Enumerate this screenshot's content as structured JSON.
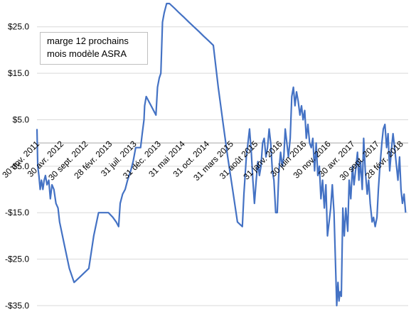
{
  "chart_data": {
    "type": "line",
    "legend": {
      "lines": [
        "marge 12 prochains",
        "mois modèle ASRA"
      ],
      "placement": "top-left"
    },
    "series_color": "#4472c4",
    "ylim": [
      -35,
      30
    ],
    "y_ticks": [
      25,
      15,
      5,
      -5,
      -15,
      -25,
      -35
    ],
    "y_tick_labels": [
      "$25.0",
      "$15.0",
      "$5.0",
      "-$5.0",
      "-$15.0",
      "-$25.0",
      "-$35.0"
    ],
    "grid": "horizontal",
    "x_range": [
      "2011-11-30",
      "2018-04-15"
    ],
    "x_ticks": [
      {
        "date": "2011-11-30",
        "label": "30 nov. 2011"
      },
      {
        "date": "2012-04-30",
        "label": "30 avr. 2012"
      },
      {
        "date": "2012-09-30",
        "label": "30 sept. 2012"
      },
      {
        "date": "2013-02-28",
        "label": "28 févr. 2013"
      },
      {
        "date": "2013-07-31",
        "label": "31 juil. 2013"
      },
      {
        "date": "2013-12-31",
        "label": "31 déc. 2013"
      },
      {
        "date": "2014-05-31",
        "label": "31 mai 2014"
      },
      {
        "date": "2014-10-31",
        "label": "31 oct. 2014"
      },
      {
        "date": "2015-03-31",
        "label": "31 mars 2015"
      },
      {
        "date": "2015-08-31",
        "label": "31 août 2015"
      },
      {
        "date": "2016-01-31",
        "label": "31 janv. 2016"
      },
      {
        "date": "2016-06-30",
        "label": "30 juin 2016"
      },
      {
        "date": "2016-11-30",
        "label": "30 nov. 2016"
      },
      {
        "date": "2017-04-30",
        "label": "30 avr. 2017"
      },
      {
        "date": "2017-09-30",
        "label": "30 sept. 2017"
      },
      {
        "date": "2018-02-28",
        "label": "28 févr. 2018"
      }
    ],
    "points": [
      [
        "2011-11-30",
        3
      ],
      [
        "2011-12-05",
        -5
      ],
      [
        "2011-12-12",
        -7
      ],
      [
        "2011-12-20",
        -10
      ],
      [
        "2011-12-28",
        -8
      ],
      [
        "2012-01-06",
        -10
      ],
      [
        "2012-01-14",
        -8
      ],
      [
        "2012-01-22",
        -7
      ],
      [
        "2012-02-01",
        -9
      ],
      [
        "2012-02-12",
        -8
      ],
      [
        "2012-02-22",
        -12
      ],
      [
        "2012-03-03",
        -9
      ],
      [
        "2012-03-15",
        -10
      ],
      [
        "2012-03-28",
        -13
      ],
      [
        "2012-04-10",
        -14
      ],
      [
        "2012-04-20",
        -17
      ],
      [
        "2012-05-20",
        -22
      ],
      [
        "2012-06-20",
        -27
      ],
      [
        "2012-07-20",
        -30
      ],
      [
        "2012-08-20",
        -29
      ],
      [
        "2012-09-20",
        -28
      ],
      [
        "2012-10-20",
        -27
      ],
      [
        "2012-11-20",
        -20
      ],
      [
        "2012-12-20",
        -15
      ],
      [
        "2013-01-20",
        -15
      ],
      [
        "2013-02-20",
        -15
      ],
      [
        "2013-03-20",
        -16
      ],
      [
        "2013-04-10",
        -17
      ],
      [
        "2013-04-25",
        -18
      ],
      [
        "2013-05-05",
        -13
      ],
      [
        "2013-05-20",
        -11
      ],
      [
        "2013-06-05",
        -10
      ],
      [
        "2013-06-20",
        -8
      ],
      [
        "2013-07-10",
        -6
      ],
      [
        "2013-07-25",
        -4
      ],
      [
        "2013-08-10",
        -1
      ],
      [
        "2013-08-25",
        -1
      ],
      [
        "2013-09-10",
        -1
      ],
      [
        "2013-09-20",
        2
      ],
      [
        "2013-10-01",
        5
      ],
      [
        "2013-10-05",
        8
      ],
      [
        "2013-10-15",
        10
      ],
      [
        "2013-10-30",
        9
      ],
      [
        "2013-11-15",
        8
      ],
      [
        "2013-11-30",
        7
      ],
      [
        "2013-12-15",
        6
      ],
      [
        "2013-12-25",
        12
      ],
      [
        "2014-01-05",
        14
      ],
      [
        "2014-01-15",
        15
      ],
      [
        "2014-01-25",
        26
      ],
      [
        "2014-02-05",
        28
      ],
      [
        "2014-02-20",
        30
      ],
      [
        "2014-03-10",
        30
      ],
      [
        "2014-04-10",
        29
      ],
      [
        "2014-05-10",
        28
      ],
      [
        "2014-06-10",
        27
      ],
      [
        "2014-07-10",
        26
      ],
      [
        "2014-08-10",
        25
      ],
      [
        "2014-09-10",
        24
      ],
      [
        "2014-10-10",
        23
      ],
      [
        "2014-11-10",
        22
      ],
      [
        "2014-12-10",
        21
      ],
      [
        "2015-01-10",
        12
      ],
      [
        "2015-02-10",
        4
      ],
      [
        "2015-03-10",
        -3
      ],
      [
        "2015-04-10",
        -10
      ],
      [
        "2015-05-10",
        -17
      ],
      [
        "2015-06-10",
        -18
      ],
      [
        "2015-06-20",
        -11
      ],
      [
        "2015-07-05",
        -3
      ],
      [
        "2015-07-15",
        0
      ],
      [
        "2015-07-25",
        3
      ],
      [
        "2015-08-05",
        -2
      ],
      [
        "2015-08-15",
        -8
      ],
      [
        "2015-08-25",
        -13
      ],
      [
        "2015-09-05",
        -8
      ],
      [
        "2015-09-15",
        -4
      ],
      [
        "2015-09-25",
        -7
      ],
      [
        "2015-10-05",
        -5
      ],
      [
        "2015-10-15",
        0
      ],
      [
        "2015-10-25",
        1
      ],
      [
        "2015-11-05",
        -3
      ],
      [
        "2015-11-15",
        -1
      ],
      [
        "2015-11-25",
        3
      ],
      [
        "2015-12-05",
        0
      ],
      [
        "2015-12-15",
        -6
      ],
      [
        "2015-12-25",
        -8
      ],
      [
        "2016-01-05",
        -15
      ],
      [
        "2016-01-15",
        -15
      ],
      [
        "2016-01-25",
        -6
      ],
      [
        "2016-02-05",
        -2
      ],
      [
        "2016-02-15",
        -5
      ],
      [
        "2016-02-25",
        -3
      ],
      [
        "2016-03-05",
        3
      ],
      [
        "2016-03-15",
        0
      ],
      [
        "2016-03-25",
        -3
      ],
      [
        "2016-04-05",
        1
      ],
      [
        "2016-04-15",
        10
      ],
      [
        "2016-04-25",
        12
      ],
      [
        "2016-05-05",
        8
      ],
      [
        "2016-05-15",
        11
      ],
      [
        "2016-05-25",
        9
      ],
      [
        "2016-06-05",
        6
      ],
      [
        "2016-06-15",
        8
      ],
      [
        "2016-06-25",
        5
      ],
      [
        "2016-07-05",
        7
      ],
      [
        "2016-07-15",
        1
      ],
      [
        "2016-07-25",
        4
      ],
      [
        "2016-08-05",
        0
      ],
      [
        "2016-08-15",
        -1
      ],
      [
        "2016-08-25",
        1
      ],
      [
        "2016-09-05",
        -6
      ],
      [
        "2016-09-15",
        0
      ],
      [
        "2016-09-25",
        -7
      ],
      [
        "2016-10-05",
        -5
      ],
      [
        "2016-10-15",
        -12
      ],
      [
        "2016-10-25",
        -8
      ],
      [
        "2016-11-05",
        -14
      ],
      [
        "2016-11-15",
        -9
      ],
      [
        "2016-11-25",
        -20
      ],
      [
        "2016-12-05",
        -17
      ],
      [
        "2016-12-15",
        -14
      ],
      [
        "2016-12-25",
        -9
      ],
      [
        "2017-01-05",
        -15
      ],
      [
        "2017-01-15",
        -27
      ],
      [
        "2017-01-22",
        -35
      ],
      [
        "2017-01-30",
        -30
      ],
      [
        "2017-02-05",
        -34
      ],
      [
        "2017-02-12",
        -32
      ],
      [
        "2017-02-20",
        -33
      ],
      [
        "2017-03-01",
        -14
      ],
      [
        "2017-03-10",
        -20
      ],
      [
        "2017-03-20",
        -14
      ],
      [
        "2017-04-01",
        -19
      ],
      [
        "2017-04-10",
        -8
      ],
      [
        "2017-04-20",
        -12
      ],
      [
        "2017-05-01",
        -5
      ],
      [
        "2017-05-10",
        -9
      ],
      [
        "2017-05-20",
        -6
      ],
      [
        "2017-06-01",
        -2
      ],
      [
        "2017-06-10",
        -8
      ],
      [
        "2017-06-20",
        -4
      ],
      [
        "2017-07-01",
        -10
      ],
      [
        "2017-07-10",
        1
      ],
      [
        "2017-07-20",
        -6
      ],
      [
        "2017-08-01",
        -11
      ],
      [
        "2017-08-10",
        -8
      ],
      [
        "2017-08-20",
        -13
      ],
      [
        "2017-09-01",
        -17
      ],
      [
        "2017-09-10",
        -16
      ],
      [
        "2017-09-20",
        -18
      ],
      [
        "2017-10-01",
        -16
      ],
      [
        "2017-10-10",
        -10
      ],
      [
        "2017-10-20",
        -5
      ],
      [
        "2017-11-01",
        0
      ],
      [
        "2017-11-10",
        3
      ],
      [
        "2017-11-20",
        4
      ],
      [
        "2017-12-01",
        -1
      ],
      [
        "2017-12-10",
        2
      ],
      [
        "2017-12-20",
        -6
      ],
      [
        "2018-01-01",
        -1
      ],
      [
        "2018-01-10",
        2
      ],
      [
        "2018-01-20",
        -1
      ],
      [
        "2018-02-01",
        -5
      ],
      [
        "2018-02-10",
        -8
      ],
      [
        "2018-02-20",
        -3
      ],
      [
        "2018-03-01",
        -10
      ],
      [
        "2018-03-10",
        -13
      ],
      [
        "2018-03-20",
        -11
      ],
      [
        "2018-03-30",
        -15
      ]
    ]
  }
}
